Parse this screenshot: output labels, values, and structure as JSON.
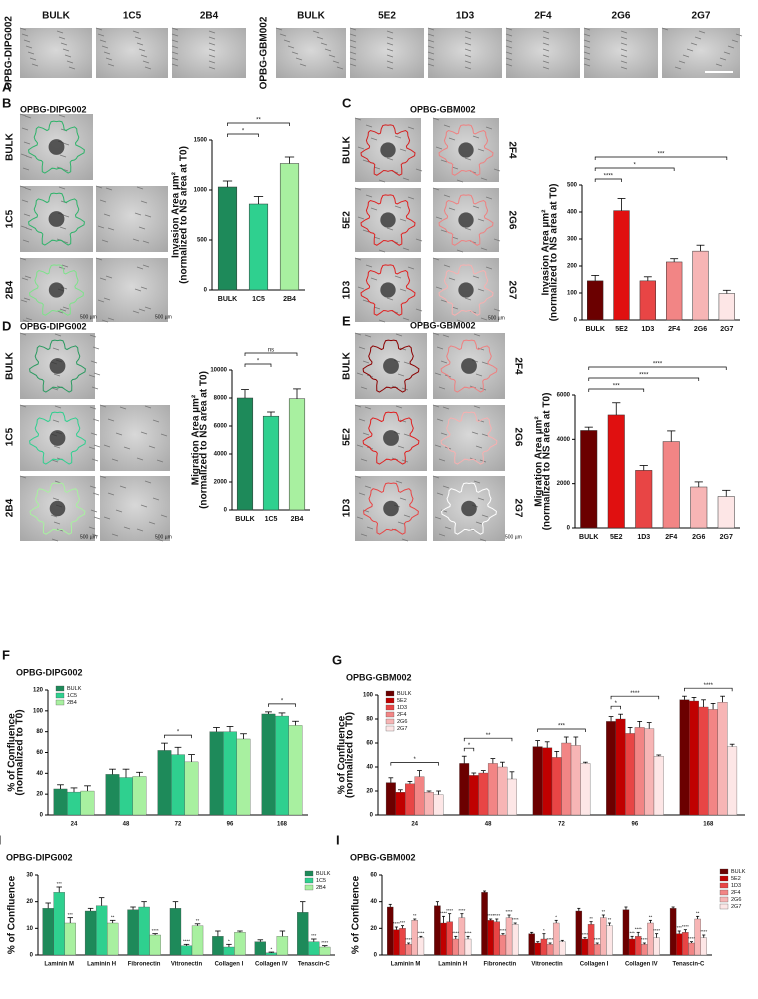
{
  "image_panels": [
    {
      "letter": "A",
      "groups": [
        {
          "label": "OPBG-DIPG002",
          "columns": [
            "BULK",
            "1C5",
            "2B4"
          ]
        },
        {
          "label": "OPBG-GBM002",
          "columns": [
            "BULK",
            "5E2",
            "1D3",
            "2F4",
            "2G6",
            "2G7"
          ]
        }
      ]
    },
    {
      "letter": "B",
      "title": "OPBG-DIPG002",
      "left_labels": [
        "BULK",
        "1C5",
        "2B4"
      ],
      "scale_labels": [
        "500 µm",
        "500 µm"
      ]
    },
    {
      "letter": "C",
      "title": "OPBG-GBM002",
      "left_labels": [
        "BULK",
        "5E2",
        "1D3"
      ],
      "right_labels": [
        "2F4",
        "2G6",
        "2G7"
      ],
      "scale_labels": [
        "500 µm"
      ]
    },
    {
      "letter": "D",
      "title": "OPBG-DIPG002",
      "left_labels": [
        "BULK",
        "1C5",
        "2B4"
      ],
      "scale_labels": [
        "500 µm",
        "500 µm"
      ]
    },
    {
      "letter": "E",
      "title": "OPBG-GBM002",
      "left_labels": [
        "BULK",
        "5E2",
        "1D3"
      ],
      "right_labels": [
        "2F4",
        "2G6",
        "2G7"
      ],
      "scale_labels": [
        "500 µm"
      ]
    }
  ],
  "chart_data": [
    {
      "type": "bar",
      "ylabel": [
        "Invasion Area µm²",
        "(normalized to NS area at T0)"
      ],
      "categories": [
        "BULK",
        "1C5",
        "2B4"
      ],
      "values": [
        1030,
        860,
        1265
      ],
      "errors": [
        60,
        75,
        65
      ],
      "colors": [
        "#1e8a5a",
        "#2fd08f",
        "#a8f0a0"
      ],
      "ylim": [
        0,
        1500
      ],
      "yticks": [
        0,
        500,
        1000,
        1500
      ],
      "annotations": [
        {
          "between": [
            "BULK",
            "1C5"
          ],
          "text": "*"
        },
        {
          "between": [
            "BULK",
            "2B4"
          ],
          "text": "**"
        }
      ]
    },
    {
      "type": "bar",
      "ylabel": [
        "Invasion Area µm²",
        "(normalized to NS area at T0)"
      ],
      "categories": [
        "BULK",
        "5E2",
        "1D3",
        "2F4",
        "2G6",
        "2G7"
      ],
      "values": [
        145,
        405,
        145,
        215,
        255,
        98
      ],
      "errors": [
        20,
        45,
        15,
        12,
        22,
        12
      ],
      "colors": [
        "#6b0000",
        "#e01010",
        "#e84545",
        "#f28585",
        "#f7b5b5",
        "#fde6e6"
      ],
      "ylim": [
        0,
        500
      ],
      "yticks": [
        0,
        100,
        200,
        300,
        400,
        500
      ],
      "annotations": [
        {
          "between": [
            "BULK",
            "5E2"
          ],
          "text": "****"
        },
        {
          "between": [
            "BULK",
            "2F4"
          ],
          "text": "*"
        },
        {
          "between": [
            "BULK",
            "2G7"
          ],
          "text": "***"
        }
      ]
    },
    {
      "type": "bar",
      "ylabel": [
        "Migration Area µm²",
        "(normalized to NS area at T0)"
      ],
      "categories": [
        "BULK",
        "1C5",
        "2B4"
      ],
      "values": [
        8000,
        6700,
        7950
      ],
      "errors": [
        600,
        300,
        700
      ],
      "colors": [
        "#1e8a5a",
        "#2fd08f",
        "#a8f0a0"
      ],
      "ylim": [
        0,
        10000
      ],
      "yticks": [
        0,
        2000,
        4000,
        6000,
        8000,
        10000
      ],
      "annotations": [
        {
          "between": [
            "BULK",
            "1C5"
          ],
          "text": "*"
        },
        {
          "between": [
            "BULK",
            "2B4"
          ],
          "text": "ns"
        }
      ]
    },
    {
      "type": "bar",
      "ylabel": [
        "Migration Area µm²",
        "(normalized to NS area at T0)"
      ],
      "categories": [
        "BULK",
        "5E2",
        "1D3",
        "2F4",
        "2G6",
        "2G7"
      ],
      "values": [
        4400,
        5100,
        2600,
        3900,
        1850,
        1420
      ],
      "errors": [
        150,
        550,
        220,
        480,
        230,
        280
      ],
      "colors": [
        "#6b0000",
        "#e01010",
        "#e84545",
        "#f28585",
        "#f7b5b5",
        "#fde6e6"
      ],
      "ylim": [
        0,
        6000
      ],
      "yticks": [
        0,
        2000,
        4000,
        6000
      ],
      "annotations": [
        {
          "between": [
            "BULK",
            "1D3"
          ],
          "text": "***"
        },
        {
          "between": [
            "BULK",
            "2G6"
          ],
          "text": "****"
        },
        {
          "between": [
            "BULK",
            "2G7"
          ],
          "text": "****"
        }
      ]
    },
    {
      "type": "grouped_bar",
      "panel": "F",
      "title": "OPBG-DIPG002",
      "ylabel": [
        "% of Confluence",
        "(normalized to T0)"
      ],
      "categories": [
        "24",
        "48",
        "72",
        "96",
        "168"
      ],
      "legend": "upper left",
      "ylim": [
        0,
        120
      ],
      "yticks": [
        0,
        20,
        40,
        60,
        80,
        100,
        120
      ],
      "series": [
        {
          "name": "BULK",
          "color": "#1e8a5a",
          "values": [
            25,
            39,
            62,
            80,
            97
          ],
          "errors": [
            4,
            5,
            7,
            4,
            2
          ]
        },
        {
          "name": "1C5",
          "color": "#2fd08f",
          "values": [
            22,
            36,
            58,
            80,
            95
          ],
          "errors": [
            4,
            8,
            7,
            5,
            3
          ]
        },
        {
          "name": "2B4",
          "color": "#a8f0a0",
          "values": [
            23,
            37,
            51,
            73,
            86
          ],
          "errors": [
            5,
            4,
            7,
            5,
            4
          ]
        }
      ],
      "annotations": [
        {
          "category": "72",
          "between": [
            "BULK",
            "2B4"
          ],
          "text": "*"
        },
        {
          "category": "168",
          "between": [
            "BULK",
            "2B4"
          ],
          "text": "*"
        }
      ]
    },
    {
      "type": "grouped_bar",
      "panel": "G",
      "title": "OPBG-GBM002",
      "ylabel": [
        "% of Confluence",
        "(normalized to T0)"
      ],
      "categories": [
        "24",
        "48",
        "72",
        "96",
        "168"
      ],
      "legend": "upper left",
      "ylim": [
        0,
        100
      ],
      "yticks": [
        0,
        20,
        40,
        60,
        80,
        100
      ],
      "series": [
        {
          "name": "BULK",
          "color": "#6b0000",
          "values": [
            27,
            43,
            57,
            78,
            96
          ],
          "errors": [
            4,
            6,
            5,
            4,
            3
          ]
        },
        {
          "name": "5E2",
          "color": "#c00000",
          "values": [
            19,
            33,
            56,
            80,
            95
          ],
          "errors": [
            2,
            2,
            5,
            4,
            3
          ]
        },
        {
          "name": "1D3",
          "color": "#e84545",
          "values": [
            26,
            35,
            48,
            68,
            90
          ],
          "errors": [
            2,
            2,
            5,
            5,
            6
          ]
        },
        {
          "name": "2F4",
          "color": "#f28585",
          "values": [
            32,
            43,
            60,
            73,
            88
          ],
          "errors": [
            5,
            4,
            5,
            5,
            5
          ]
        },
        {
          "name": "2G6",
          "color": "#f7b5b5",
          "values": [
            19,
            40,
            58,
            72,
            94
          ],
          "errors": [
            1,
            4,
            7,
            5,
            5
          ]
        },
        {
          "name": "2G7",
          "color": "#fde6e6",
          "values": [
            17,
            30,
            43,
            49,
            57
          ],
          "errors": [
            3,
            6,
            1,
            1,
            2
          ]
        }
      ],
      "annotations": [
        {
          "category": "24",
          "between": [
            "BULK",
            "2G7"
          ],
          "text": "*"
        },
        {
          "category": "48",
          "between": [
            "BULK",
            "5E2"
          ],
          "text": "*"
        },
        {
          "category": "48",
          "between": [
            "BULK",
            "2G7"
          ],
          "text": "**"
        },
        {
          "category": "72",
          "between": [
            "BULK",
            "2G7"
          ],
          "text": "***"
        },
        {
          "category": "96",
          "between": [
            "BULK",
            "5E2"
          ],
          "text": "*"
        },
        {
          "category": "96",
          "between": [
            "BULK",
            "2G7"
          ],
          "text": "****"
        },
        {
          "category": "168",
          "between": [
            "BULK",
            "2G7"
          ],
          "text": "****"
        }
      ]
    },
    {
      "type": "grouped_bar",
      "panel": "H",
      "title": "OPBG-DIPG002",
      "ylabel": [
        "% of Confluence"
      ],
      "categories": [
        "Laminin M",
        "Laminin H",
        "Fibronectin",
        "Vitronectin",
        "Collagen I",
        "Collagen IV",
        "Tenascin-C"
      ],
      "legend": "upper right",
      "ylim": [
        0,
        30
      ],
      "yticks": [
        0,
        10,
        20,
        30
      ],
      "series": [
        {
          "name": "BULK",
          "color": "#1e8a5a",
          "values": [
            17.5,
            16.5,
            17,
            17.5,
            7,
            5,
            16
          ],
          "errors": [
            2,
            1,
            1,
            2.5,
            2,
            0.7,
            4
          ],
          "stars": [
            null,
            null,
            null,
            null,
            null,
            null,
            null
          ]
        },
        {
          "name": "1C5",
          "color": "#2fd08f",
          "values": [
            23.5,
            18.5,
            18,
            3.5,
            3,
            0.8,
            5
          ],
          "errors": [
            2,
            3,
            2,
            0.5,
            1,
            0.3,
            1
          ],
          "stars": [
            "***",
            null,
            null,
            "****",
            "*",
            "*",
            "***"
          ]
        },
        {
          "name": "2B4",
          "color": "#a8f0a0",
          "values": [
            12,
            12,
            7.5,
            11,
            8.5,
            7,
            3
          ],
          "errors": [
            2,
            1,
            0.5,
            0.7,
            0.5,
            2,
            0.5
          ],
          "stars": [
            "***",
            "**",
            "****",
            "**",
            null,
            null,
            "****"
          ]
        }
      ]
    },
    {
      "type": "grouped_bar",
      "panel": "I",
      "title": "OPBG-GBM002",
      "ylabel": [
        "% of Confluence"
      ],
      "categories": [
        "Laminin M",
        "Laminin H",
        "Fibronectin",
        "Vitronectin",
        "Collagen I",
        "Collagen IV",
        "Tenascin-C"
      ],
      "legend": "right",
      "ylim": [
        0,
        60
      ],
      "yticks": [
        0,
        20,
        40,
        60
      ],
      "series": [
        {
          "name": "BULK",
          "color": "#6b0000",
          "values": [
            36,
            37,
            47,
            16,
            33,
            34,
            35
          ],
          "errors": [
            2,
            3,
            1,
            1,
            2,
            2,
            1
          ],
          "stars": [
            null,
            null,
            null,
            null,
            null,
            null,
            null
          ]
        },
        {
          "name": "5E2",
          "color": "#c00000",
          "values": [
            19,
            24,
            26,
            9,
            12,
            12,
            16
          ],
          "errors": [
            2,
            5,
            1,
            1,
            1,
            2,
            2
          ],
          "stars": [
            "****",
            "****",
            "****",
            null,
            "****",
            "***",
            "***"
          ]
        },
        {
          "name": "1D3",
          "color": "#e84545",
          "values": [
            20,
            25,
            25,
            12,
            23,
            14,
            17
          ],
          "errors": [
            2,
            6,
            2,
            4,
            2,
            3,
            2
          ],
          "stars": [
            "***",
            "****",
            "****",
            "*",
            "**",
            "****",
            "****"
          ]
        },
        {
          "name": "2F4",
          "color": "#f28585",
          "values": [
            8,
            12,
            15,
            8,
            8,
            8,
            9
          ],
          "errors": [
            1,
            2,
            1,
            1,
            1,
            1,
            1
          ],
          "stars": [
            "****",
            "****",
            "****",
            "****",
            "****",
            "****",
            "****"
          ]
        },
        {
          "name": "2G6",
          "color": "#f7b5b5",
          "values": [
            26,
            28,
            28,
            24,
            28,
            24,
            27
          ],
          "errors": [
            1,
            3,
            2,
            2,
            2,
            2,
            2
          ],
          "stars": [
            "**",
            "****",
            "****",
            "*",
            "**",
            "**",
            "**"
          ]
        },
        {
          "name": "2G7",
          "color": "#fde6e6",
          "values": [
            13,
            12,
            23,
            10,
            22,
            13,
            13
          ],
          "errors": [
            1,
            2,
            1,
            1,
            2,
            3,
            2
          ],
          "stars": [
            "****",
            "****",
            "****",
            null,
            "**",
            "****",
            "****"
          ]
        }
      ]
    }
  ]
}
